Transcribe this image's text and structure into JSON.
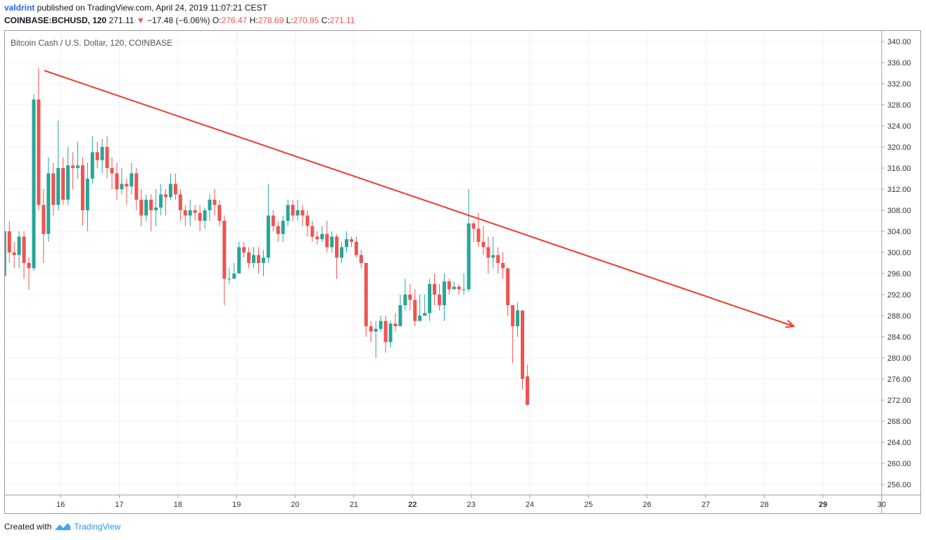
{
  "header": {
    "user": "valdrint",
    "published_text": " published on TradingView.com, April 24, 2019 11:07:21 CEST",
    "symbol": "COINBASE:BCHUSD, 120",
    "last": "271.11",
    "change_arrow": "▼",
    "change": "−17.48 (−6.06%)",
    "open_label": "O:",
    "open": "276.47",
    "high_label": "H:",
    "high": "278.69",
    "low_label": "L:",
    "low": "270.95",
    "close_label": "C:",
    "close": "271.11"
  },
  "footer": {
    "created_with": "Created with",
    "brand": "TradingView"
  },
  "colors": {
    "up": "#26a69a",
    "down": "#ef5350",
    "trendline": "#f23a2e",
    "grid": "#eef0f3",
    "axis_text": "#333333"
  },
  "chart_data": {
    "type": "candlestick",
    "title": "Bitcoin Cash / U.S. Dollar, 120, COINBASE",
    "ylim": [
      254,
      342
    ],
    "yticks": [
      "340.00",
      "336.00",
      "332.00",
      "328.00",
      "324.00",
      "320.00",
      "316.00",
      "312.00",
      "308.00",
      "304.00",
      "300.00",
      "296.00",
      "292.00",
      "288.00",
      "284.00",
      "280.00",
      "276.00",
      "272.00",
      "268.00",
      "264.00",
      "260.00",
      "256.00"
    ],
    "xlim_days": [
      15.05,
      30.0
    ],
    "xticks": [
      {
        "day": 16,
        "label": "16",
        "bold": false
      },
      {
        "day": 17,
        "label": "17",
        "bold": false
      },
      {
        "day": 18,
        "label": "18",
        "bold": false
      },
      {
        "day": 19,
        "label": "19",
        "bold": false
      },
      {
        "day": 20,
        "label": "20",
        "bold": false
      },
      {
        "day": 21,
        "label": "21",
        "bold": false
      },
      {
        "day": 22,
        "label": "22",
        "bold": true
      },
      {
        "day": 23,
        "label": "23",
        "bold": false
      },
      {
        "day": 24,
        "label": "24",
        "bold": false
      },
      {
        "day": 25,
        "label": "25",
        "bold": false
      },
      {
        "day": 26,
        "label": "26",
        "bold": false
      },
      {
        "day": 27,
        "label": "27",
        "bold": false
      },
      {
        "day": 28,
        "label": "28",
        "bold": false
      },
      {
        "day": 29,
        "label": "29",
        "bold": true
      },
      {
        "day": 30,
        "label": "30",
        "bold": false
      }
    ],
    "start_day": 15.0,
    "bar_interval_hours": 2,
    "candles": [
      [
        295.5,
        304.0,
        288.0,
        304.5
      ],
      [
        304.0,
        300.0,
        298.0,
        306.0
      ],
      [
        300.0,
        299.5,
        297.0,
        302.0
      ],
      [
        299.5,
        303.0,
        297.0,
        304.0
      ],
      [
        303.0,
        298.0,
        295.0,
        304.0
      ],
      [
        298.0,
        297.0,
        293.0,
        299.0
      ],
      [
        297.0,
        329.0,
        296.5,
        330.0
      ],
      [
        329.0,
        309.0,
        308.0,
        335.0
      ],
      [
        309.0,
        303.5,
        298.0,
        312.0
      ],
      [
        303.5,
        315.0,
        302.0,
        318.0
      ],
      [
        315.0,
        309.0,
        307.0,
        317.0
      ],
      [
        309.0,
        316.0,
        308.0,
        325.0
      ],
      [
        316.0,
        310.0,
        309.0,
        318.0
      ],
      [
        310.0,
        316.5,
        309.0,
        320.0
      ],
      [
        316.5,
        316.0,
        312.0,
        319.0
      ],
      [
        316.0,
        316.5,
        314.0,
        321.0
      ],
      [
        316.5,
        308.0,
        305.0,
        318.0
      ],
      [
        308.0,
        314.0,
        304.0,
        317.0
      ],
      [
        314.0,
        319.0,
        313.0,
        322.0
      ],
      [
        319.0,
        317.5,
        316.0,
        321.0
      ],
      [
        317.5,
        320.0,
        315.0,
        321.5
      ],
      [
        320.0,
        316.0,
        314.0,
        322.0
      ],
      [
        316.0,
        315.0,
        312.0,
        318.0
      ],
      [
        315.0,
        312.0,
        310.0,
        317.0
      ],
      [
        312.0,
        313.0,
        311.0,
        316.0
      ],
      [
        313.0,
        312.5,
        309.0,
        314.0
      ],
      [
        312.5,
        315.0,
        311.0,
        317.0
      ],
      [
        315.0,
        310.0,
        308.0,
        316.0
      ],
      [
        310.0,
        307.0,
        305.0,
        312.0
      ],
      [
        307.0,
        310.0,
        306.0,
        311.0
      ],
      [
        310.0,
        308.0,
        304.0,
        311.0
      ],
      [
        308.0,
        308.5,
        305.0,
        312.0
      ],
      [
        308.5,
        311.0,
        307.0,
        313.0
      ],
      [
        311.0,
        310.5,
        307.0,
        312.0
      ],
      [
        310.5,
        313.0,
        310.0,
        315.0
      ],
      [
        313.0,
        311.0,
        310.0,
        315.0
      ],
      [
        311.0,
        308.0,
        306.0,
        312.0
      ],
      [
        308.0,
        307.0,
        305.0,
        309.0
      ],
      [
        307.0,
        308.0,
        305.0,
        310.0
      ],
      [
        308.0,
        307.5,
        306.0,
        309.0
      ],
      [
        307.5,
        306.0,
        304.0,
        309.0
      ],
      [
        306.0,
        308.0,
        304.5,
        308.5
      ],
      [
        308.0,
        310.0,
        306.0,
        311.0
      ],
      [
        310.0,
        309.0,
        307.0,
        312.0
      ],
      [
        309.0,
        306.0,
        305.0,
        310.0
      ],
      [
        306.0,
        295.0,
        290.0,
        307.0
      ],
      [
        295.0,
        295.0,
        294.0,
        297.0
      ],
      [
        295.0,
        296.0,
        295.0,
        298.0
      ],
      [
        296.0,
        301.0,
        296.0,
        302.0
      ],
      [
        301.0,
        300.0,
        299.0,
        302.0
      ],
      [
        300.0,
        298.0,
        297.0,
        301.0
      ],
      [
        298.0,
        299.5,
        297.0,
        301.0
      ],
      [
        299.5,
        298.0,
        296.0,
        301.0
      ],
      [
        298.0,
        299.0,
        295.5,
        300.5
      ],
      [
        299.0,
        307.0,
        298.0,
        313.0
      ],
      [
        307.0,
        305.0,
        304.0,
        308.0
      ],
      [
        305.0,
        303.5,
        302.0,
        306.0
      ],
      [
        303.5,
        306.0,
        302.0,
        307.0
      ],
      [
        306.0,
        309.0,
        305.0,
        310.0
      ],
      [
        309.0,
        307.0,
        306.0,
        310.0
      ],
      [
        307.0,
        308.0,
        306.0,
        310.0
      ],
      [
        308.0,
        307.0,
        305.0,
        309.0
      ],
      [
        307.0,
        305.0,
        303.0,
        308.0
      ],
      [
        305.0,
        303.0,
        302.0,
        306.0
      ],
      [
        303.0,
        302.5,
        301.5,
        304.0
      ],
      [
        302.5,
        303.5,
        302.0,
        305.0
      ],
      [
        303.5,
        301.0,
        300.0,
        306.0
      ],
      [
        301.0,
        303.0,
        300.0,
        304.0
      ],
      [
        303.0,
        299.0,
        295.0,
        303.5
      ],
      [
        299.0,
        301.0,
        298.0,
        302.0
      ],
      [
        301.0,
        302.5,
        300.0,
        304.0
      ],
      [
        302.5,
        302.0,
        301.0,
        303.0
      ],
      [
        302.0,
        299.5,
        299.0,
        303.0
      ],
      [
        299.5,
        298.0,
        297.0,
        300.5
      ],
      [
        298.0,
        286.0,
        284.0,
        298.0
      ],
      [
        286.0,
        285.0,
        283.0,
        287.0
      ],
      [
        285.0,
        285.5,
        280.0,
        287.0
      ],
      [
        285.5,
        287.0,
        285.0,
        288.0
      ],
      [
        287.0,
        283.0,
        281.0,
        288.0
      ],
      [
        283.0,
        286.5,
        282.0,
        287.0
      ],
      [
        286.5,
        286.0,
        285.0,
        288.5
      ],
      [
        286.0,
        290.0,
        286.0,
        292.0
      ],
      [
        290.0,
        292.0,
        289.0,
        295.0
      ],
      [
        292.0,
        291.0,
        289.0,
        294.0
      ],
      [
        291.0,
        287.0,
        286.0,
        293.0
      ],
      [
        287.0,
        288.0,
        287.0,
        292.0
      ],
      [
        288.0,
        288.5,
        288.0,
        292.0
      ],
      [
        288.5,
        294.0,
        287.0,
        295.0
      ],
      [
        294.0,
        292.0,
        290.0,
        296.0
      ],
      [
        292.0,
        290.0,
        289.0,
        294.0
      ],
      [
        290.0,
        294.5,
        287.0,
        296.0
      ],
      [
        294.5,
        293.0,
        292.0,
        295.0
      ],
      [
        293.0,
        293.5,
        293.0,
        294.5
      ],
      [
        293.5,
        293.0,
        292.0,
        294.0
      ],
      [
        293.0,
        293.0,
        292.0,
        296.0
      ],
      [
        293.0,
        305.5,
        292.5,
        312.0
      ],
      [
        305.5,
        304.5,
        302.0,
        306.0
      ],
      [
        304.5,
        302.0,
        301.0,
        307.5
      ],
      [
        302.0,
        301.0,
        299.5,
        305.0
      ],
      [
        301.0,
        299.0,
        296.0,
        303.0
      ],
      [
        299.0,
        299.5,
        297.0,
        303.0
      ],
      [
        299.5,
        298.0,
        296.0,
        301.0
      ],
      [
        298.0,
        297.0,
        295.0,
        300.0
      ],
      [
        297.0,
        290.0,
        288.0,
        297.0
      ],
      [
        290.0,
        286.0,
        279.0,
        290.0
      ],
      [
        286.0,
        289.0,
        284.0,
        290.5
      ],
      [
        289.0,
        276.0,
        274.0,
        289.0
      ],
      [
        276.5,
        271.11,
        270.95,
        278.69
      ]
    ],
    "trendline": {
      "start": [
        15.72,
        334.5
      ],
      "end": [
        28.5,
        286.0
      ],
      "arrow": true
    },
    "grid": true
  }
}
